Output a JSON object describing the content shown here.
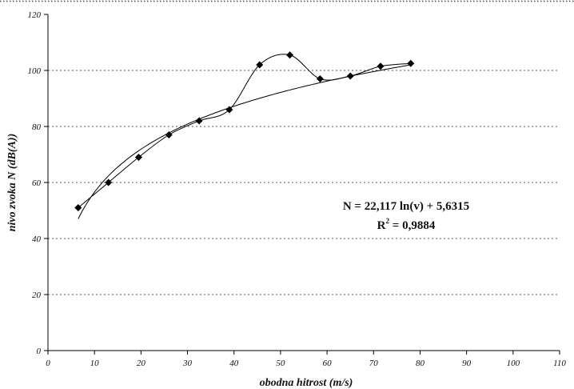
{
  "chart_data": {
    "type": "scatter",
    "xlabel": "obodna hitrost (m/s)",
    "ylabel": "nivo zvoka N (dB(A))",
    "xlim": [
      0,
      110
    ],
    "ylim": [
      0,
      120
    ],
    "x_ticks": [
      0,
      10,
      20,
      30,
      40,
      50,
      60,
      70,
      80,
      90,
      100,
      110
    ],
    "y_ticks": [
      0,
      20,
      40,
      60,
      80,
      100,
      120
    ],
    "grid": "horizontal dotted",
    "series": [
      {
        "points": [
          {
            "x": 6.5,
            "y": 51
          },
          {
            "x": 13,
            "y": 60
          },
          {
            "x": 19.5,
            "y": 69
          },
          {
            "x": 26,
            "y": 77
          },
          {
            "x": 32.5,
            "y": 82
          },
          {
            "x": 39,
            "y": 86
          },
          {
            "x": 45.5,
            "y": 102
          },
          {
            "x": 52,
            "y": 105.5
          },
          {
            "x": 58.5,
            "y": 97
          },
          {
            "x": 65,
            "y": 98
          },
          {
            "x": 71.5,
            "y": 101.5
          },
          {
            "x": 78,
            "y": 102.5
          }
        ],
        "marker": "diamond",
        "connector": "smooth line",
        "color": "#000000"
      }
    ],
    "trendline": {
      "type": "logarithmic",
      "a": 22.117,
      "b": 5.6315,
      "x_range": [
        6.5,
        78
      ],
      "equation": "N = 22,117 ln(v) + 5,6315",
      "r2_label": "R",
      "r2_sup": "2",
      "r2_value": " = 0,9884"
    }
  }
}
